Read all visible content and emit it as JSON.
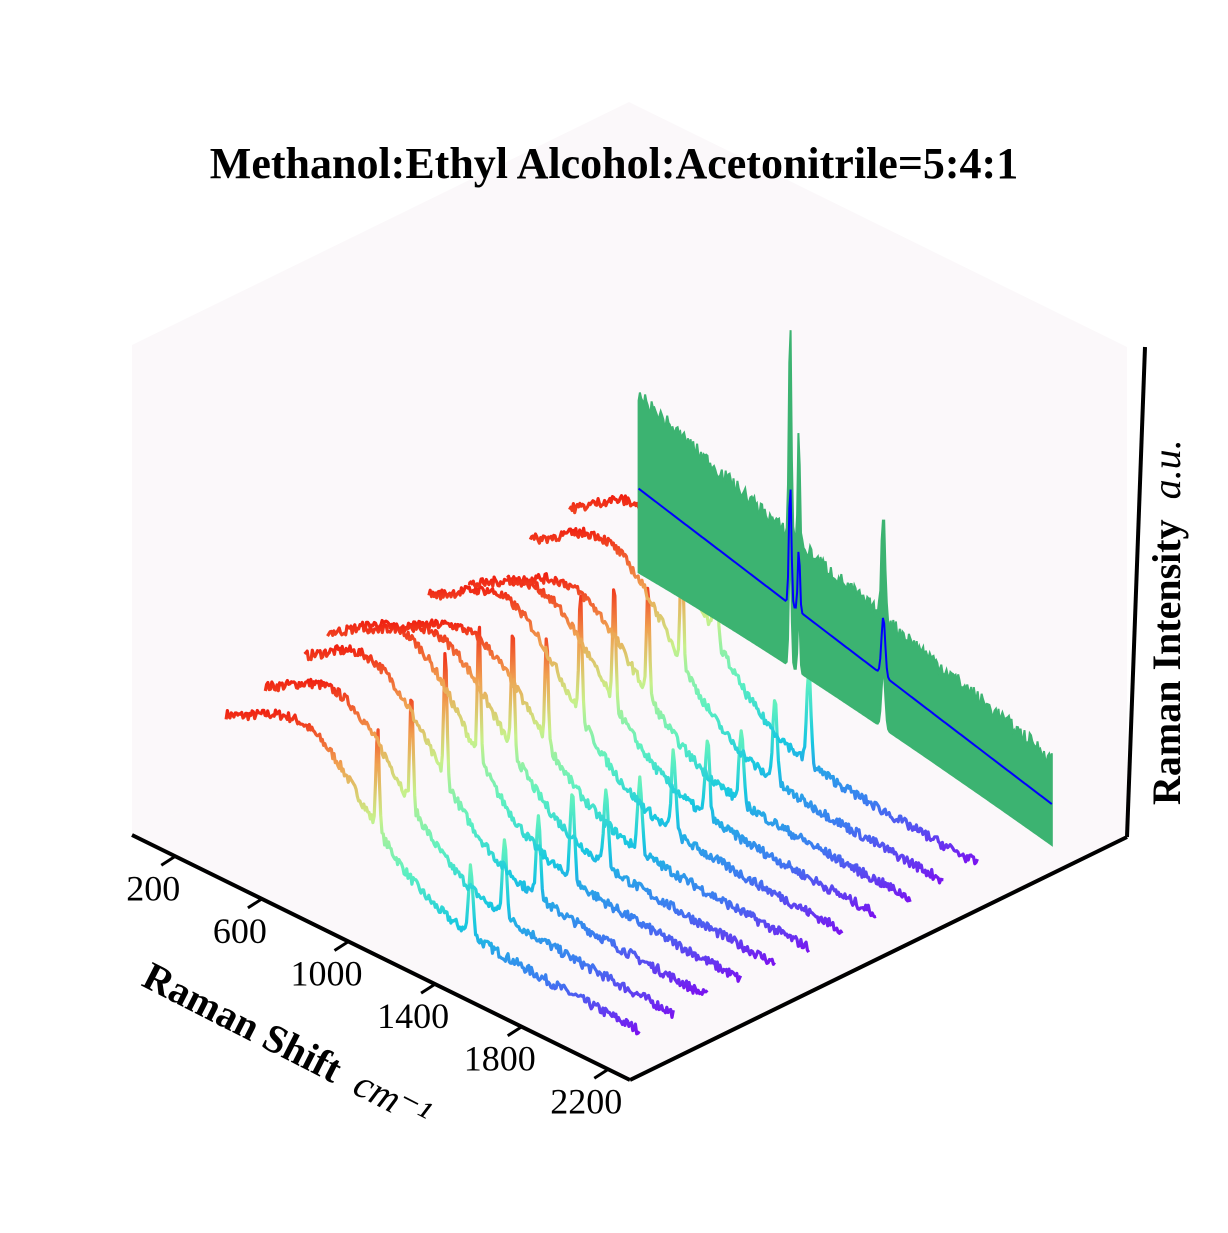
{
  "chart_data": {
    "type": "line",
    "projection": "3d",
    "title": "Methanol:Ethyl Alcohol:Acetonitrile=5:4:1",
    "xlabel": "Raman Shift",
    "xlabel_unit": "cm⁻¹",
    "zlabel": "Raman Intensity",
    "zlabel_unit": "a.u.",
    "x_ticks": [
      "200",
      "600",
      "1000",
      "1400",
      "1800",
      "2200"
    ],
    "xlim": [
      0,
      2300
    ],
    "grid": false,
    "pane_color": "#fbf8fa",
    "spike_colormap": [
      "#ffffff",
      "#c48ac2",
      "#e0389a",
      "#a8145c",
      "#6a0034"
    ],
    "spectrum_colormap": [
      "#7a12f0",
      "#3c7bf0",
      "#18c8e0",
      "#5ef0c0",
      "#c8f08a",
      "#f0a050",
      "#f02010"
    ],
    "mean_color": "#0000ff",
    "band_color": "#3cb371",
    "spike_groups": [
      {
        "x": [
          150,
          700,
          1240,
          1520,
          1890,
          2210
        ],
        "heights": [
          0.52,
          0.58,
          0.96,
          0.26,
          0.24,
          0.22
        ]
      },
      {
        "x": [
          230,
          760,
          1300,
          1590,
          1960
        ],
        "heights": [
          0.44,
          0.78,
          1.0,
          0.18,
          0.18
        ]
      }
    ],
    "spectrum_peaks": [
      {
        "x": 1020,
        "amp": 0.32,
        "width": 10
      },
      {
        "x": 1450,
        "amp": 0.21,
        "width": 14
      },
      {
        "x": 2930,
        "amp": 0.0,
        "width": 1
      }
    ],
    "spectrum_scales": [
      0.78,
      0.86,
      0.95,
      1.0,
      0.9,
      0.82,
      0.92,
      0.88,
      0.8,
      0.96,
      1.05
    ],
    "mean_spectrum": {
      "baseline": 0.34,
      "peaks": [
        {
          "x": 1020,
          "amp": 0.25,
          "width": 8
        },
        {
          "x": 1060,
          "amp": 0.13,
          "width": 7
        },
        {
          "x": 1450,
          "amp": 0.12,
          "width": 12
        }
      ]
    }
  }
}
